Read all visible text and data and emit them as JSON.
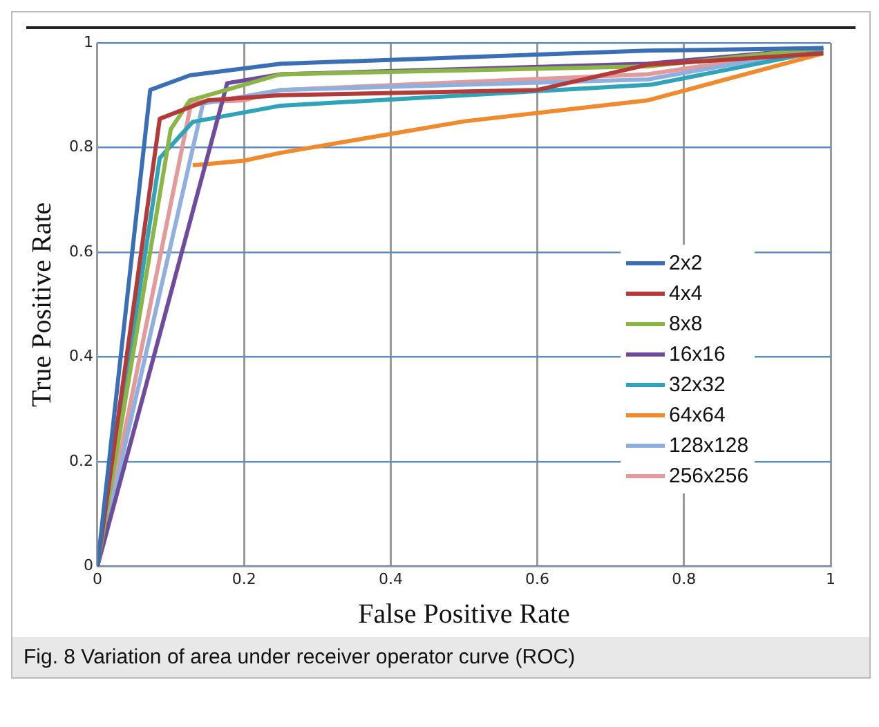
{
  "chart_data": {
    "type": "line",
    "xlabel": "False Positive Rate",
    "ylabel": "True Positive Rate",
    "annotations": [
      "Fig. 8 Variation of area under receiver operator curve (ROC)"
    ],
    "xlim": [
      0,
      1
    ],
    "ylim": [
      0,
      1
    ],
    "xticks": [
      0,
      0.2,
      0.4,
      0.6,
      0.8,
      1
    ],
    "yticks": [
      0,
      0.2,
      0.4,
      0.6,
      0.8,
      1
    ],
    "grid": true,
    "legend": "right",
    "marker": "none",
    "line_style": "solid",
    "series": [
      {
        "name": "2x2",
        "color": "#3a6fb5",
        "x": [
          0,
          0.072,
          0.126,
          0.25,
          0.75,
          0.99
        ],
        "values": [
          0,
          0.91,
          0.938,
          0.96,
          0.985,
          0.99
        ]
      },
      {
        "name": "4x4",
        "color": "#b43a3a",
        "x": [
          0,
          0.085,
          0.15,
          0.25,
          0.6,
          0.75,
          0.99
        ],
        "values": [
          0,
          0.855,
          0.89,
          0.9,
          0.91,
          0.958,
          0.98
        ]
      },
      {
        "name": "8x8",
        "color": "#8cb547",
        "x": [
          0,
          0.1,
          0.126,
          0.25,
          0.75,
          0.99
        ],
        "values": [
          0,
          0.835,
          0.89,
          0.94,
          0.955,
          0.99
        ]
      },
      {
        "name": "16x16",
        "color": "#6f4b9c",
        "x": [
          0,
          0.177,
          0.25,
          0.75,
          0.99
        ],
        "values": [
          0,
          0.923,
          0.94,
          0.96,
          0.99
        ]
      },
      {
        "name": "32x32",
        "color": "#2fa3b8",
        "x": [
          0,
          0.085,
          0.13,
          0.25,
          0.755,
          0.99
        ],
        "values": [
          0,
          0.78,
          0.849,
          0.88,
          0.92,
          0.985
        ]
      },
      {
        "name": "64x64",
        "color": "#f08a2c",
        "x": [
          0.13,
          0.2,
          0.25,
          0.5,
          0.75,
          0.99
        ],
        "values": [
          0.766,
          0.775,
          0.79,
          0.85,
          0.89,
          0.98
        ]
      },
      {
        "name": "128x128",
        "color": "#8fb0de",
        "x": [
          0,
          0.144,
          0.25,
          0.75,
          0.99
        ],
        "values": [
          0,
          0.884,
          0.91,
          0.93,
          0.99
        ]
      },
      {
        "name": "256x256",
        "color": "#e29a9a",
        "x": [
          0,
          0.128,
          0.2,
          0.25,
          0.75,
          0.99
        ],
        "values": [
          0,
          0.886,
          0.89,
          0.91,
          0.94,
          0.99
        ]
      }
    ]
  }
}
